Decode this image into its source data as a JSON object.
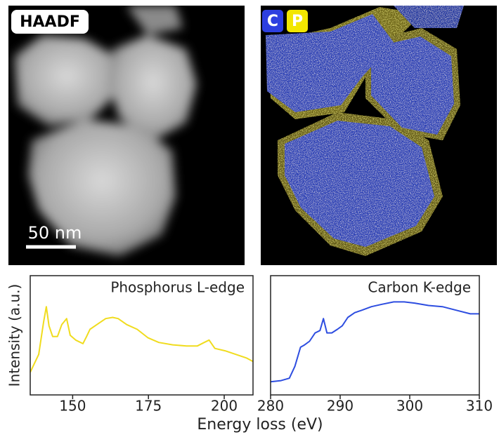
{
  "images": {
    "haadf_label": "HAADF",
    "scale_bar": "50 nm",
    "map_labels": [
      "C",
      "P"
    ]
  },
  "figure": {
    "ylabel": "Intensity (a.u.)",
    "xlabel": "Energy loss (eV)"
  },
  "chart_data": [
    {
      "type": "line",
      "title": "Phosphorus L-edge",
      "color": "#f0dc1e",
      "x": [
        136,
        138.8,
        140.4,
        141.3,
        142.2,
        143.4,
        145,
        146.4,
        148,
        149.2,
        151,
        153.4,
        154.6,
        155.7,
        158,
        160.9,
        163.2,
        165,
        167.8,
        171.3,
        174.8,
        178.4,
        183,
        187.6,
        191.1,
        193.4,
        195,
        196.9,
        200.3,
        203.8,
        207.3,
        209.5
      ],
      "values": [
        19,
        34,
        61,
        74,
        58,
        49,
        49,
        59,
        64,
        50,
        46,
        43,
        49,
        55,
        59,
        64,
        65,
        64,
        59,
        55,
        48,
        44,
        42,
        41,
        41,
        44,
        46,
        39,
        37,
        34,
        31,
        28
      ],
      "xlim": [
        136,
        209.5
      ],
      "ylim": [
        0,
        100
      ],
      "xticks": [
        150,
        175,
        200
      ]
    },
    {
      "type": "line",
      "title": "Carbon K-edge",
      "color": "#2d4de0",
      "x": [
        280,
        281.5,
        282.7,
        283.5,
        284.3,
        284.9,
        285.6,
        286.4,
        287.1,
        287.6,
        288.1,
        288.8,
        289.6,
        290.3,
        291.1,
        292.1,
        293.1,
        294.5,
        296,
        297.7,
        299.2,
        300.7,
        302.7,
        304.7,
        306.7,
        308.7,
        310
      ],
      "values": [
        11,
        12,
        14,
        24,
        40,
        42,
        45,
        52,
        54,
        64,
        52,
        52,
        55,
        58,
        65,
        69,
        71,
        74,
        76,
        78,
        78,
        77,
        75,
        74,
        71,
        68,
        68
      ],
      "xlim": [
        280,
        310
      ],
      "ylim": [
        0,
        100
      ],
      "xticks": [
        280,
        290,
        300,
        310
      ]
    }
  ]
}
